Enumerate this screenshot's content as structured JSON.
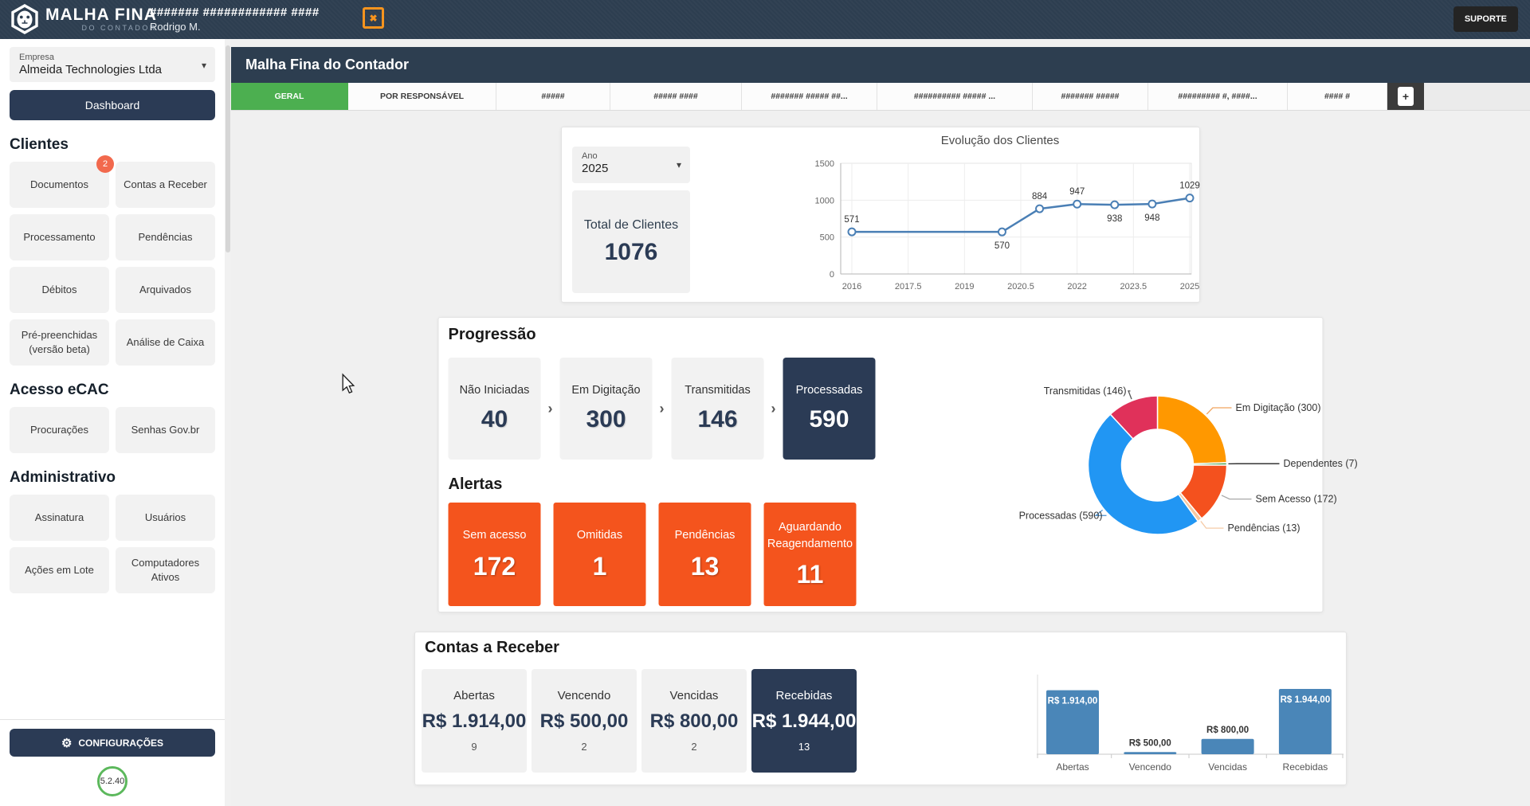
{
  "colors": {
    "navy": "#2d3e50",
    "dark_box": "#2b3b55",
    "active_tab_green": "#4caf50",
    "alert_orange": "#f4541d",
    "badge_orange": "#f2694d",
    "line_blue": "#4a7fb5",
    "bar_blue": "#4a86b8"
  },
  "icons": {
    "caret": "▾",
    "gear": "⚙",
    "chevron": "›",
    "plus": "+",
    "x_box": "✖"
  },
  "navbar": {
    "logo_title": "MALHA FINA",
    "logo_subtitle": "DO CONTADOR",
    "masked_title": "####### ############ ####",
    "user_name": "Rodrigo M.",
    "support_label": "SUPORTE"
  },
  "sidebar": {
    "company": {
      "label": "Empresa",
      "value": "Almeida Technologies Ltda"
    },
    "dashboard_label": "Dashboard",
    "sections": [
      {
        "title": "Clientes",
        "items": [
          {
            "label": "Documentos",
            "badge": "2"
          },
          {
            "label": "Contas a Receber"
          },
          {
            "label": "Processamento"
          },
          {
            "label": "Pendências"
          },
          {
            "label": "Débitos"
          },
          {
            "label": "Arquivados"
          },
          {
            "label": "Pré-preenchidas (versão beta)"
          },
          {
            "label": "Análise de Caixa"
          }
        ]
      },
      {
        "title": "Acesso eCAC",
        "items": [
          {
            "label": "Procurações"
          },
          {
            "label": "Senhas Gov.br"
          }
        ]
      },
      {
        "title": "Administrativo",
        "items": [
          {
            "label": "Assinatura"
          },
          {
            "label": "Usuários"
          },
          {
            "label": "Ações em Lote"
          },
          {
            "label": "Computadores Ativos"
          }
        ]
      }
    ],
    "settings_label": "CONFIGURAÇÕES",
    "version": "5.2.40"
  },
  "main": {
    "header_title": "Malha Fina do Contador",
    "tabs": [
      {
        "label": "GERAL",
        "active": true
      },
      {
        "label": "POR RESPONSÁVEL"
      },
      {
        "label": "#####"
      },
      {
        "label": "##### ####"
      },
      {
        "label": "####### ##### ##..."
      },
      {
        "label": "########## ##### ..."
      },
      {
        "label": "####### #####"
      },
      {
        "label": "######### #, ####..."
      },
      {
        "label": "#### #"
      }
    ]
  },
  "clients_card": {
    "year_label": "Ano",
    "year_value": "2025",
    "total_label": "Total de Clientes",
    "total_value": "1076"
  },
  "progress_card": {
    "title": "Progressão",
    "steps": [
      {
        "label": "Não Iniciadas",
        "value": "40"
      },
      {
        "label": "Em Digitação",
        "value": "300"
      },
      {
        "label": "Transmitidas",
        "value": "146"
      },
      {
        "label": "Processadas",
        "value": "590"
      }
    ],
    "alerts_title": "Alertas",
    "alerts": [
      {
        "label": "Sem acesso",
        "value": "172"
      },
      {
        "label": "Omitidas",
        "value": "1"
      },
      {
        "label": "Pendências",
        "value": "13"
      },
      {
        "label": "Aguardando Reagendamento",
        "value": "11"
      }
    ]
  },
  "receivables_card": {
    "title": "Contas a Receber",
    "boxes": [
      {
        "label": "Abertas",
        "value": "R$ 1.914,00",
        "count": "9"
      },
      {
        "label": "Vencendo",
        "value": "R$ 500,00",
        "count": "2"
      },
      {
        "label": "Vencidas",
        "value": "R$ 800,00",
        "count": "2"
      },
      {
        "label": "Recebidas",
        "value": "R$ 1.944,00",
        "count": "13"
      }
    ]
  },
  "chart_data": [
    {
      "id": "clients_evolution",
      "type": "line",
      "title": "Evolução dos Clientes",
      "x": [
        2016,
        2020,
        2021,
        2022,
        2023,
        2024,
        2025
      ],
      "values": [
        571,
        570,
        884,
        947,
        938,
        948,
        1029
      ],
      "label_positions": [
        "above",
        "below",
        "above",
        "above",
        "below",
        "below",
        "above"
      ],
      "xticks": [
        "2016",
        "2017.5",
        "2019",
        "2020.5",
        "2022",
        "2023.5",
        "2025"
      ],
      "yticks": [
        0,
        500,
        1000,
        1500
      ],
      "xlim": [
        2016,
        2025
      ],
      "ylim": [
        0,
        1500
      ],
      "grid": true,
      "line_color": "#4a7fb5"
    },
    {
      "id": "progress_donut",
      "type": "pie",
      "donut": true,
      "start_angle_top_clockwise": 0,
      "segments": [
        {
          "label": "Em Digitação (300)",
          "value": 300,
          "color": "#ff9800"
        },
        {
          "label": "Dependentes (7)",
          "value": 7,
          "color": "#43a047"
        },
        {
          "label": "Sem Acesso (172)",
          "value": 172,
          "color": "#f4511e"
        },
        {
          "label": "Pendências (13)",
          "value": 13,
          "color": "#f8c8a0"
        },
        {
          "label": "Processadas (590)",
          "value": 590,
          "color": "#2196f3"
        },
        {
          "label": "Transmitidas (146)",
          "value": 146,
          "color": "#e0315a"
        }
      ]
    },
    {
      "id": "receivables_bars",
      "type": "bar",
      "categories": [
        "Abertas",
        "Vencendo",
        "Vencidas",
        "Recebidas"
      ],
      "values": [
        1914,
        500,
        800,
        1944
      ],
      "labels": [
        "R$ 1.914,00",
        "R$ 500,00",
        "R$ 800,00",
        "R$ 1.944,00"
      ],
      "baseline_value": 450,
      "max_value": 1944,
      "bar_color": "#4a86b8"
    }
  ]
}
